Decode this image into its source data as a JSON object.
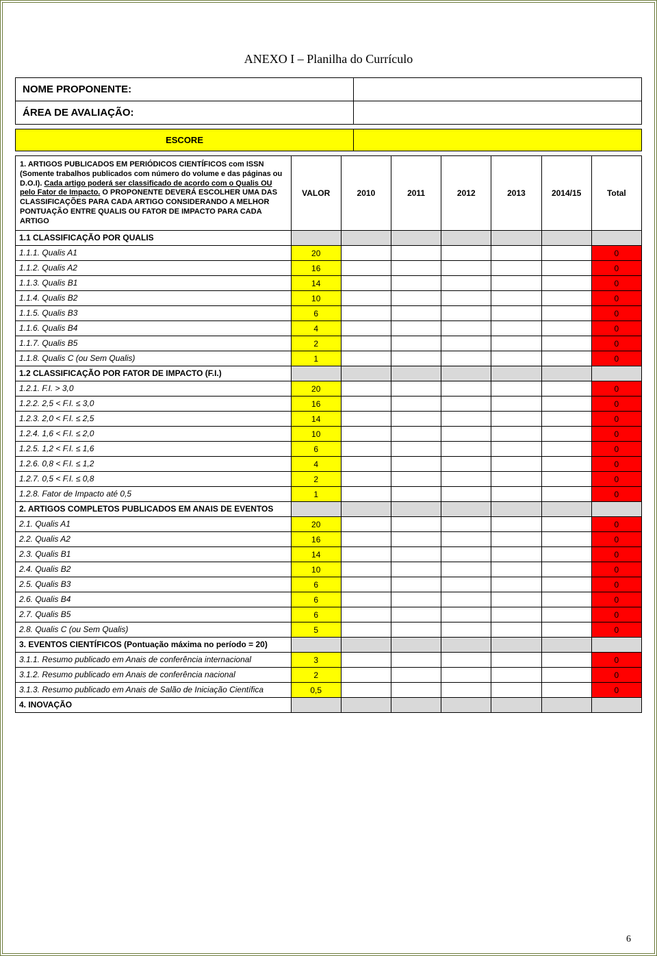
{
  "title": "ANEXO I – Planilha do Currículo",
  "header": {
    "nome_label": "NOME PROPONENTE:",
    "area_label": "ÁREA DE AVALIAÇÃO:",
    "escore_label": "ESCORE"
  },
  "columns": {
    "valor": "VALOR",
    "y2010": "2010",
    "y2011": "2011",
    "y2012": "2012",
    "y2013": "2013",
    "y2014": "2014/15",
    "total": "Total"
  },
  "rows": [
    {
      "type": "section",
      "desc": "1. ARTIGOS PUBLICADOS EM PERIÓDICOS CIENTÍFICOS com  ISSN  (Somente trabalhos publicados com número do volume e das páginas ou D.O.I). <span class=\"underline\">Cada artigo poderá ser classificado de acordo com o Qualis <b>OU</b> pelo Fator de Impacto.</span> O PROPONENTE DEVERÁ ESCOLHER UMA DAS CLASSIFICAÇÕES PARA CADA ARTIGO CONSIDERANDO A MELHOR PONTUAÇÃO ENTRE QUALIS OU FATOR DE IMPACTO PARA CADA ARTIGO",
      "is_header_row": true
    },
    {
      "type": "subhead",
      "desc": "1.1  CLASSIFICAÇÃO POR QUALIS"
    },
    {
      "type": "score",
      "desc": "1.1.1. Qualis A1",
      "valor": "20",
      "total": "0",
      "italic": true
    },
    {
      "type": "score",
      "desc": "1.1.2. Qualis A2",
      "valor": "16",
      "total": "0",
      "italic": true
    },
    {
      "type": "score",
      "desc": "1.1.3. Qualis B1",
      "valor": "14",
      "total": "0",
      "italic": true
    },
    {
      "type": "score",
      "desc": "1.1.4. Qualis B2",
      "valor": "10",
      "total": "0",
      "italic": true
    },
    {
      "type": "score",
      "desc": "1.1.5. Qualis B3",
      "valor": "6",
      "total": "0",
      "italic": true
    },
    {
      "type": "score",
      "desc": "1.1.6. Qualis B4",
      "valor": "4",
      "total": "0",
      "italic": true
    },
    {
      "type": "score",
      "desc": "1.1.7. Qualis B5",
      "valor": "2",
      "total": "0",
      "italic": true
    },
    {
      "type": "score",
      "desc": "1.1.8. Qualis C (ou Sem Qualis)",
      "valor": "1",
      "total": "0",
      "italic": true
    },
    {
      "type": "subhead",
      "desc": "1.2  CLASSIFICAÇÃO POR FATOR DE IMPACTO (F.I.)"
    },
    {
      "type": "score",
      "desc": "1.2.1.  F.I. > 3,0",
      "valor": "20",
      "total": "0",
      "italic": true
    },
    {
      "type": "score",
      "desc": "1.2.2. 2,5 < F.I. ≤ 3,0",
      "valor": "16",
      "total": "0",
      "italic": true
    },
    {
      "type": "score",
      "desc": "1.2.3. 2,0 < F.I. ≤  2,5",
      "valor": "14",
      "total": "0",
      "italic": true
    },
    {
      "type": "score",
      "desc": "1.2.4. 1,6 < F.I. ≤  2,0",
      "valor": "10",
      "total": "0",
      "italic": true
    },
    {
      "type": "score",
      "desc": "1.2.5. 1,2 < F.I. ≤  1,6",
      "valor": "6",
      "total": "0",
      "italic": true
    },
    {
      "type": "score",
      "desc": "1.2.6. 0,8 < F.I. ≤  1,2",
      "valor": "4",
      "total": "0",
      "italic": true
    },
    {
      "type": "score",
      "desc": "1.2.7.  0,5 <  F.I.  ≤  0,8",
      "valor": "2",
      "total": "0",
      "italic": true
    },
    {
      "type": "score",
      "desc": "1.2.8. Fator de Impacto  até 0,5",
      "valor": "1",
      "total": "0",
      "italic": true
    },
    {
      "type": "subhead",
      "desc": "2. ARTIGOS COMPLETOS PUBLICADOS EM ANAIS DE EVENTOS"
    },
    {
      "type": "score",
      "desc": "2.1. Qualis A1",
      "valor": "20",
      "total": "0",
      "italic": true
    },
    {
      "type": "score",
      "desc": "2.2. Qualis A2",
      "valor": "16",
      "total": "0",
      "italic": true
    },
    {
      "type": "score",
      "desc": "2.3. Qualis B1",
      "valor": "14",
      "total": "0",
      "italic": true
    },
    {
      "type": "score",
      "desc": "2.4. Qualis B2",
      "valor": "10",
      "total": "0",
      "italic": true
    },
    {
      "type": "score",
      "desc": "2.5. Qualis B3",
      "valor": "6",
      "total": "0",
      "italic": true
    },
    {
      "type": "score",
      "desc": "2.6. Qualis B4",
      "valor": "6",
      "total": "0",
      "italic": true
    },
    {
      "type": "score",
      "desc": "2.7. Qualis B5",
      "valor": "6",
      "total": "0",
      "italic": true
    },
    {
      "type": "score",
      "desc": "2.8. Qualis C (ou Sem Qualis)",
      "valor": "5",
      "total": "0",
      "italic": true
    },
    {
      "type": "subhead",
      "desc": "3. EVENTOS CIENTÍFICOS  (Pontuação máxima no período = 20)"
    },
    {
      "type": "score",
      "desc": "3.1.1. Resumo publicado em Anais de conferência internacional",
      "valor": "3",
      "total": "0",
      "italic": true
    },
    {
      "type": "score",
      "desc": "3.1.2. Resumo publicado em Anais de conferência nacional",
      "valor": "2",
      "total": "0",
      "italic": true
    },
    {
      "type": "score",
      "desc": "3.1.3. Resumo publicado em Anais de Salão de Iniciação Científica",
      "valor": "0,5",
      "total": "0",
      "italic": true
    },
    {
      "type": "subhead",
      "desc": "4. INOVAÇÃO"
    }
  ],
  "page_number": "6",
  "colors": {
    "border": "#6b7a3a",
    "yellow": "#ffff00",
    "red": "#ff0000",
    "grey": "#d9d9d9"
  }
}
